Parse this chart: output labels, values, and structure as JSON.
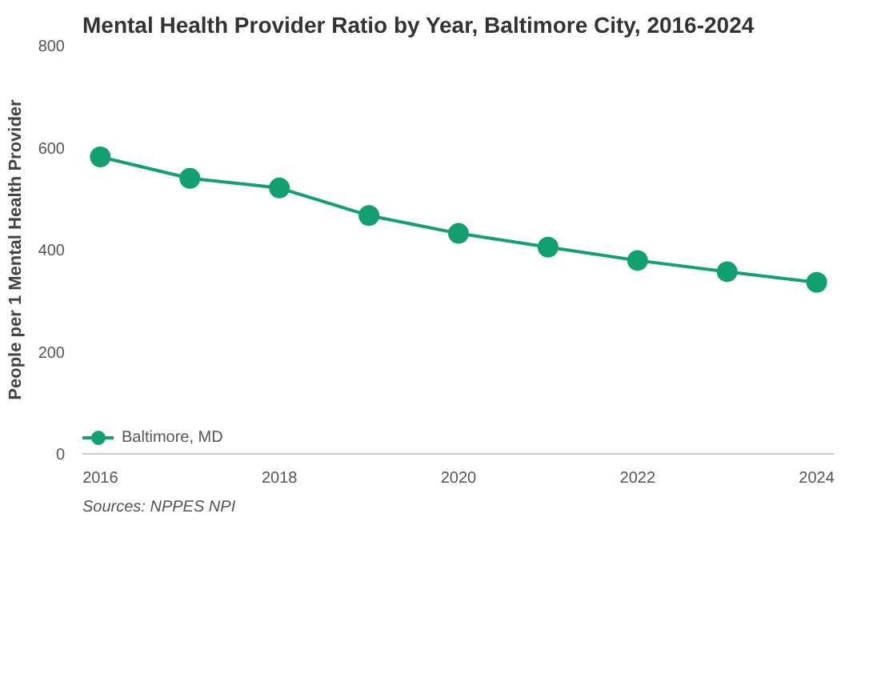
{
  "chart_data": {
    "type": "line",
    "title": "Mental Health Provider Ratio by Year, Baltimore City, 2016-2024",
    "ylabel": "People per 1 Mental Health Provider",
    "x": [
      2016,
      2017,
      2018,
      2019,
      2020,
      2021,
      2022,
      2023,
      2024
    ],
    "series": [
      {
        "name": "Baltimore, MD",
        "color": "#12a06e",
        "values": [
          582,
          540,
          521,
          467,
          432,
          405,
          379,
          357,
          336
        ]
      }
    ],
    "xlim": [
      2015.8,
      2024.2
    ],
    "xticks": [
      2016,
      2018,
      2020,
      2022,
      2024
    ],
    "ylim": [
      0,
      800
    ],
    "yticks": [
      0,
      200,
      400,
      600,
      800
    ],
    "grid": false,
    "legend": "bottom left",
    "marker": "circle",
    "line_style": "solid",
    "annotations": [
      "Sources: NPPES NPI"
    ]
  }
}
